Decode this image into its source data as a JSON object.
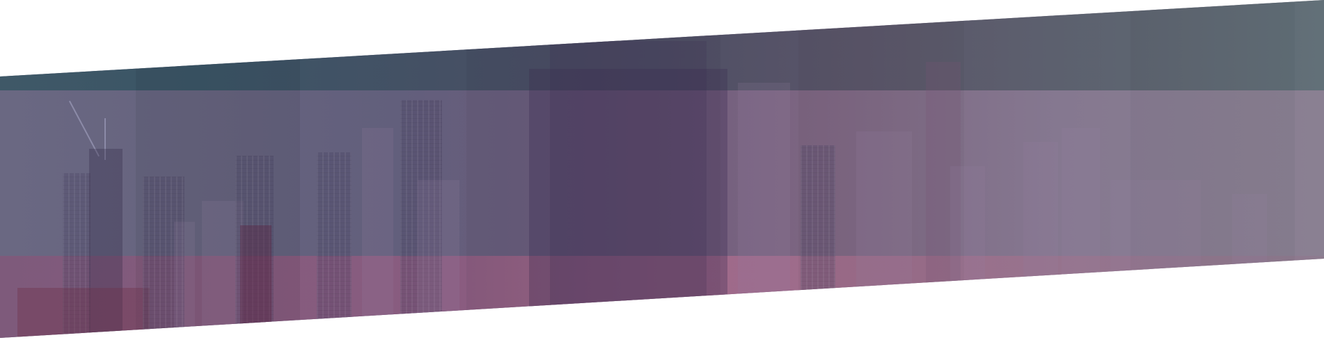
{
  "banner": {
    "description_colors": {
      "top_tint": "#3f5867",
      "mid_tone": "#6c5a7a",
      "bottom_tint": "#a0688a",
      "background": "#ffffff"
    }
  }
}
